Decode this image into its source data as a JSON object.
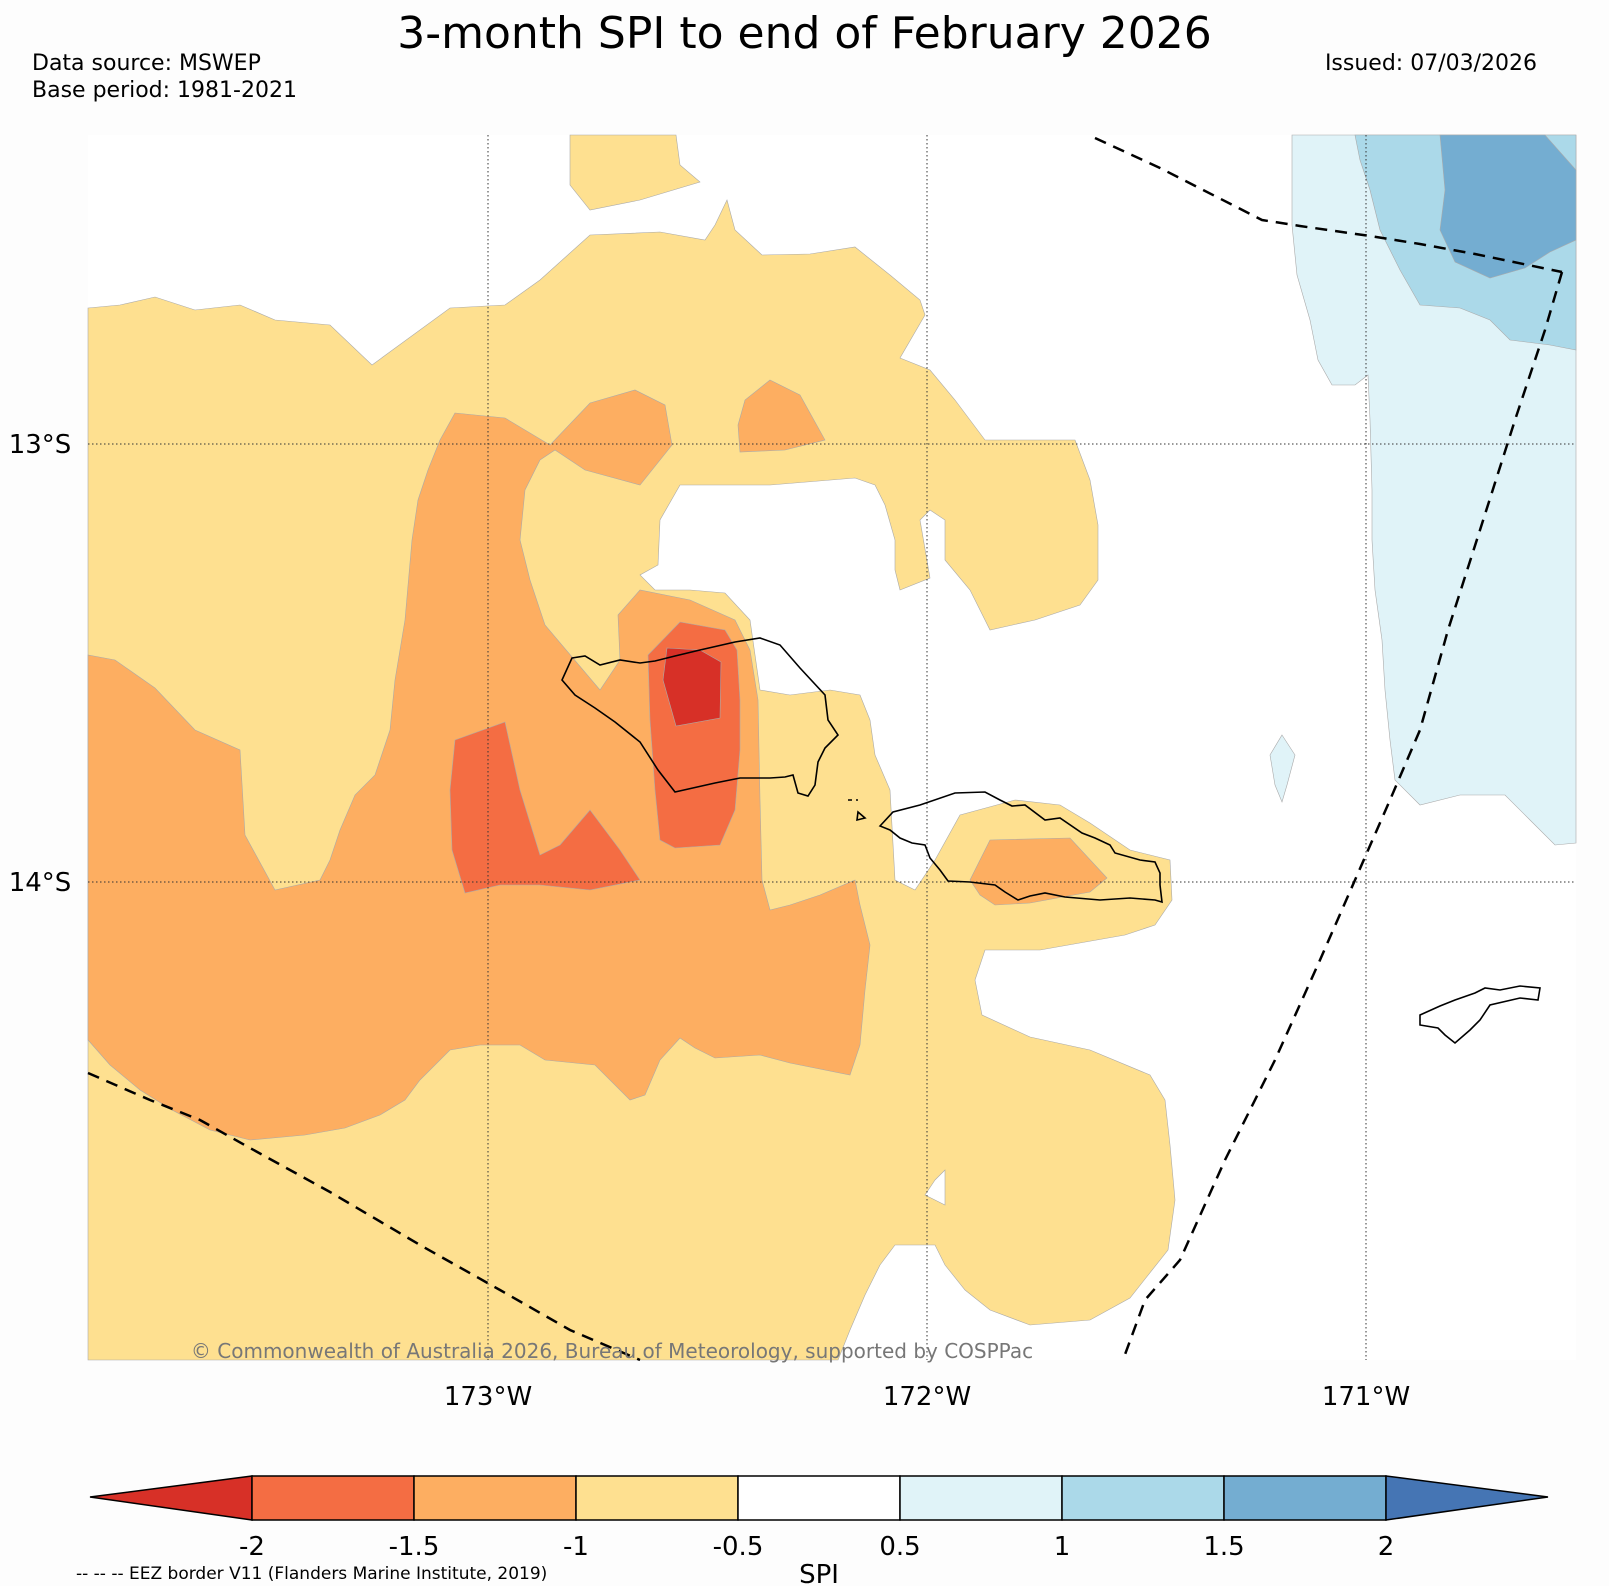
{
  "title": "3-month SPI to end of February 2026",
  "data_source": "Data source: MSWEP",
  "base_period": "Base period: 1981-2021",
  "issued": "Issued: 07/03/2026",
  "lat_labels": [
    "13°S",
    "14°S"
  ],
  "lon_labels": [
    "173°W",
    "172°W",
    "171°W"
  ],
  "credit": "© Commonwealth of Australia 2026, Bureau of Meteorology, supported by COSPPac",
  "colorbar": {
    "label": "SPI",
    "ticks": [
      "-2",
      "-1.5",
      "-1",
      "-0.5",
      "0.5",
      "1",
      "1.5",
      "2"
    ],
    "colors": [
      "#d73027",
      "#f46d43",
      "#fdae61",
      "#fee090",
      "#ffffff",
      "#e0f3f8",
      "#abd9e9",
      "#74add1",
      "#4575b4"
    ]
  },
  "footnote": "-- -- -- EEZ border V11 (Flanders Marine Institute, 2019)"
}
